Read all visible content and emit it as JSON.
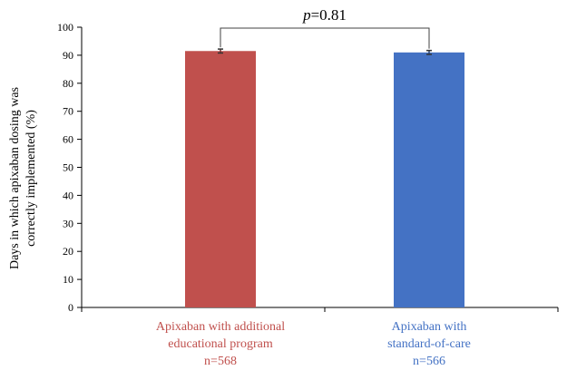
{
  "chart_data": {
    "type": "bar",
    "title": "",
    "xlabel": "",
    "ylabel_lines": [
      "Days in which apixaban dosing was",
      "correctly implemented (%)"
    ],
    "ylim": [
      0,
      100
    ],
    "yticks": [
      0,
      10,
      20,
      30,
      40,
      50,
      60,
      70,
      80,
      90,
      100
    ],
    "grid": false,
    "legend": "none",
    "categories": [
      {
        "label_lines": [
          "Apixaban with additional",
          "educational program",
          "n=568"
        ],
        "value": 91.5,
        "error": 0.7,
        "color": "#c0504d"
      },
      {
        "label_lines": [
          "Apixaban with",
          "standard-of-care",
          "n=566"
        ],
        "value": 91.0,
        "error": 0.7,
        "color": "#4472c4"
      }
    ],
    "annotation": {
      "italic_part": "p",
      "rest": "=0.81"
    }
  }
}
